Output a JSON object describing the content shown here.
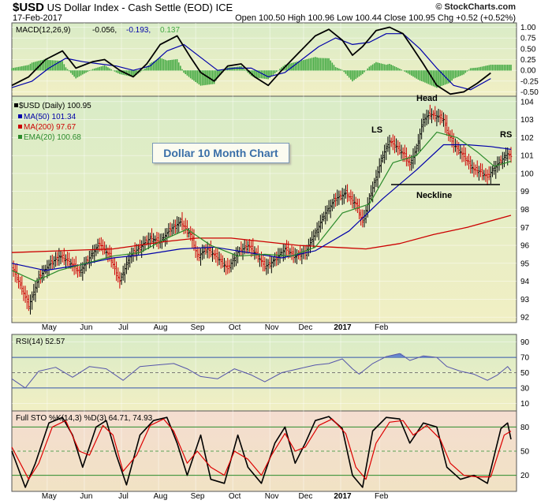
{
  "header": {
    "symbol": "$USD",
    "name": "US Dollar Index - Cash Settle (EOD)",
    "exchange": "ICE",
    "date": "17-Feb-2017",
    "brand": "© StockCharts.com",
    "quote": "Open 100.50   High 100.96   Low 100.44   Close 100.95   Chg +0.52 (+0.52%)"
  },
  "callout": "Dollar 10 Month Chart",
  "annotations": {
    "head": "Head",
    "ls": "LS",
    "rs": "RS",
    "neckline": "Neckline"
  },
  "colors": {
    "price_up": "#000000",
    "price_down": "#cc0000",
    "ma50": "#0000aa",
    "ma200": "#cc0000",
    "ema20": "#2a8a2a",
    "macd_hist": "#44aa44",
    "rsi": "#5555aa",
    "sto_k": "#000000",
    "sto_d": "#dd0000",
    "panel_bg": "#f1efc4"
  },
  "chart_data": [
    {
      "type": "line",
      "panel": "macd",
      "title": "MACD(12,26,9)",
      "legend_values": [
        "-0.056",
        "-0.193",
        "0.137"
      ],
      "y_ticks": [
        "1.00",
        "0.75",
        "0.50",
        "0.25",
        "0.00",
        "-0.25",
        "-0.50"
      ],
      "ylim": [
        -0.6,
        1.1
      ],
      "macd": [
        [
          0,
          -0.35
        ],
        [
          10,
          -0.15
        ],
        [
          20,
          0.25
        ],
        [
          30,
          0.45
        ],
        [
          38,
          0.05
        ],
        [
          48,
          0.2
        ],
        [
          55,
          0.25
        ],
        [
          64,
          0.0
        ],
        [
          72,
          -0.15
        ],
        [
          80,
          0.15
        ],
        [
          88,
          0.6
        ],
        [
          98,
          0.8
        ],
        [
          106,
          0.3
        ],
        [
          112,
          -0.05
        ],
        [
          120,
          -0.25
        ],
        [
          128,
          0.1
        ],
        [
          136,
          0.15
        ],
        [
          144,
          -0.15
        ],
        [
          152,
          -0.35
        ],
        [
          160,
          0.0
        ],
        [
          170,
          0.4
        ],
        [
          180,
          0.8
        ],
        [
          188,
          0.95
        ],
        [
          196,
          0.7
        ],
        [
          202,
          0.35
        ],
        [
          208,
          0.55
        ],
        [
          216,
          0.92
        ],
        [
          224,
          1.0
        ],
        [
          232,
          0.85
        ],
        [
          238,
          0.5
        ],
        [
          244,
          0.15
        ],
        [
          252,
          -0.35
        ],
        [
          260,
          -0.55
        ],
        [
          268,
          -0.5
        ],
        [
          276,
          -0.3
        ],
        [
          284,
          -0.06
        ]
      ],
      "signal": [
        [
          0,
          -0.4
        ],
        [
          12,
          -0.25
        ],
        [
          22,
          0.05
        ],
        [
          32,
          0.28
        ],
        [
          42,
          0.2
        ],
        [
          52,
          0.15
        ],
        [
          62,
          0.1
        ],
        [
          72,
          0.0
        ],
        [
          82,
          0.1
        ],
        [
          92,
          0.45
        ],
        [
          102,
          0.6
        ],
        [
          112,
          0.3
        ],
        [
          122,
          0.0
        ],
        [
          132,
          0.05
        ],
        [
          142,
          0.05
        ],
        [
          152,
          -0.15
        ],
        [
          162,
          -0.05
        ],
        [
          172,
          0.25
        ],
        [
          182,
          0.55
        ],
        [
          192,
          0.75
        ],
        [
          202,
          0.6
        ],
        [
          212,
          0.65
        ],
        [
          222,
          0.85
        ],
        [
          232,
          0.85
        ],
        [
          242,
          0.5
        ],
        [
          252,
          0.05
        ],
        [
          262,
          -0.35
        ],
        [
          272,
          -0.45
        ],
        [
          284,
          -0.19
        ]
      ]
    },
    {
      "type": "line",
      "panel": "price",
      "title": "$USD (Daily) 100.95",
      "legend": [
        {
          "name": "MA(50) 101.34"
        },
        {
          "name": "MA(200) 97.67"
        },
        {
          "name": "EMA(20) 100.68"
        }
      ],
      "y_ticks": [
        92,
        93,
        94,
        95,
        96,
        97,
        98,
        99,
        100,
        101,
        102,
        103,
        104
      ],
      "ylim": [
        91.7,
        104.3
      ],
      "x_labels": [
        "May",
        "Jun",
        "Jul",
        "Aug",
        "Sep",
        "Oct",
        "Nov",
        "Dec",
        "2017",
        "Feb"
      ],
      "close": [
        [
          0,
          94.8
        ],
        [
          6,
          93.6
        ],
        [
          10,
          92.6
        ],
        [
          16,
          94.2
        ],
        [
          22,
          94.9
        ],
        [
          28,
          95.4
        ],
        [
          34,
          95.1
        ],
        [
          40,
          94.5
        ],
        [
          46,
          95.3
        ],
        [
          52,
          96.1
        ],
        [
          58,
          95.4
        ],
        [
          64,
          94.0
        ],
        [
          70,
          95.4
        ],
        [
          76,
          95.9
        ],
        [
          82,
          96.4
        ],
        [
          88,
          96.2
        ],
        [
          94,
          96.9
        ],
        [
          100,
          97.3
        ],
        [
          106,
          96.6
        ],
        [
          110,
          95.4
        ],
        [
          116,
          95.8
        ],
        [
          122,
          95.3
        ],
        [
          128,
          94.7
        ],
        [
          134,
          95.6
        ],
        [
          140,
          96.0
        ],
        [
          146,
          95.4
        ],
        [
          150,
          94.8
        ],
        [
          156,
          95.2
        ],
        [
          162,
          95.8
        ],
        [
          168,
          95.4
        ],
        [
          174,
          95.6
        ],
        [
          180,
          96.7
        ],
        [
          186,
          97.8
        ],
        [
          192,
          98.6
        ],
        [
          198,
          98.9
        ],
        [
          204,
          98.3
        ],
        [
          208,
          97.3
        ],
        [
          212,
          98.6
        ],
        [
          216,
          99.8
        ],
        [
          220,
          101.0
        ],
        [
          224,
          101.8
        ],
        [
          228,
          101.5
        ],
        [
          232,
          101.1
        ],
        [
          236,
          100.5
        ],
        [
          240,
          101.4
        ],
        [
          244,
          103.0
        ],
        [
          248,
          103.3
        ],
        [
          252,
          103.2
        ],
        [
          256,
          103.0
        ],
        [
          258,
          102.4
        ],
        [
          262,
          101.6
        ],
        [
          266,
          101.2
        ],
        [
          270,
          100.7
        ],
        [
          274,
          100.2
        ],
        [
          278,
          100.1
        ],
        [
          282,
          99.8
        ],
        [
          286,
          100.3
        ],
        [
          290,
          100.7
        ],
        [
          294,
          101.1
        ],
        [
          296,
          100.95
        ]
      ],
      "ma50": [
        [
          0,
          95.0
        ],
        [
          20,
          94.6
        ],
        [
          40,
          94.9
        ],
        [
          60,
          95.3
        ],
        [
          80,
          95.5
        ],
        [
          100,
          95.8
        ],
        [
          120,
          95.9
        ],
        [
          140,
          95.6
        ],
        [
          160,
          95.3
        ],
        [
          180,
          95.7
        ],
        [
          200,
          96.8
        ],
        [
          220,
          98.6
        ],
        [
          240,
          100.2
        ],
        [
          256,
          101.6
        ],
        [
          270,
          101.6
        ],
        [
          284,
          101.5
        ],
        [
          296,
          101.34
        ]
      ],
      "ma200": [
        [
          0,
          95.6
        ],
        [
          30,
          95.7
        ],
        [
          60,
          95.8
        ],
        [
          90,
          96.2
        ],
        [
          110,
          96.4
        ],
        [
          130,
          96.4
        ],
        [
          150,
          96.2
        ],
        [
          170,
          96.0
        ],
        [
          190,
          95.9
        ],
        [
          210,
          95.8
        ],
        [
          230,
          96.1
        ],
        [
          250,
          96.6
        ],
        [
          270,
          97.0
        ],
        [
          296,
          97.67
        ]
      ],
      "ema20": [
        [
          0,
          94.6
        ],
        [
          14,
          94.0
        ],
        [
          28,
          94.6
        ],
        [
          44,
          95.0
        ],
        [
          60,
          95.4
        ],
        [
          76,
          95.6
        ],
        [
          92,
          96.4
        ],
        [
          104,
          96.9
        ],
        [
          118,
          96.0
        ],
        [
          134,
          95.4
        ],
        [
          150,
          95.5
        ],
        [
          166,
          95.4
        ],
        [
          180,
          95.9
        ],
        [
          196,
          97.8
        ],
        [
          212,
          98.3
        ],
        [
          226,
          100.6
        ],
        [
          240,
          101.0
        ],
        [
          252,
          102.3
        ],
        [
          264,
          102.0
        ],
        [
          276,
          101.2
        ],
        [
          286,
          100.4
        ],
        [
          296,
          100.68
        ]
      ]
    },
    {
      "type": "line",
      "panel": "rsi",
      "title": "RSI(14) 52.57",
      "y_ticks": [
        10,
        30,
        50,
        70,
        90
      ],
      "ylim": [
        0,
        100
      ],
      "values": [
        [
          0,
          42
        ],
        [
          8,
          30
        ],
        [
          16,
          52
        ],
        [
          26,
          57
        ],
        [
          36,
          44
        ],
        [
          46,
          58
        ],
        [
          56,
          55
        ],
        [
          66,
          40
        ],
        [
          76,
          58
        ],
        [
          86,
          60
        ],
        [
          96,
          62
        ],
        [
          104,
          55
        ],
        [
          112,
          45
        ],
        [
          122,
          42
        ],
        [
          132,
          55
        ],
        [
          142,
          47
        ],
        [
          150,
          38
        ],
        [
          160,
          50
        ],
        [
          170,
          55
        ],
        [
          180,
          60
        ],
        [
          188,
          62
        ],
        [
          196,
          68
        ],
        [
          202,
          55
        ],
        [
          206,
          48
        ],
        [
          214,
          62
        ],
        [
          222,
          71
        ],
        [
          230,
          75
        ],
        [
          236,
          66
        ],
        [
          244,
          72
        ],
        [
          252,
          70
        ],
        [
          258,
          58
        ],
        [
          266,
          52
        ],
        [
          274,
          48
        ],
        [
          282,
          40
        ],
        [
          288,
          47
        ],
        [
          294,
          58
        ],
        [
          296,
          52.57
        ]
      ]
    },
    {
      "type": "line",
      "panel": "full_sto",
      "title": "Full STO %K(14,3) %D(3) 64.71, 74.93",
      "y_ticks": [
        20,
        50,
        80
      ],
      "ylim": [
        0,
        100
      ],
      "k": [
        [
          0,
          50
        ],
        [
          8,
          5
        ],
        [
          14,
          35
        ],
        [
          22,
          85
        ],
        [
          30,
          92
        ],
        [
          36,
          70
        ],
        [
          42,
          30
        ],
        [
          50,
          80
        ],
        [
          56,
          88
        ],
        [
          62,
          45
        ],
        [
          68,
          8
        ],
        [
          76,
          70
        ],
        [
          84,
          88
        ],
        [
          92,
          92
        ],
        [
          98,
          60
        ],
        [
          104,
          20
        ],
        [
          112,
          70
        ],
        [
          118,
          15
        ],
        [
          126,
          10
        ],
        [
          134,
          70
        ],
        [
          140,
          30
        ],
        [
          148,
          10
        ],
        [
          156,
          60
        ],
        [
          162,
          80
        ],
        [
          168,
          35
        ],
        [
          174,
          60
        ],
        [
          180,
          88
        ],
        [
          188,
          93
        ],
        [
          196,
          78
        ],
        [
          202,
          20
        ],
        [
          208,
          5
        ],
        [
          214,
          75
        ],
        [
          222,
          92
        ],
        [
          230,
          90
        ],
        [
          236,
          60
        ],
        [
          244,
          85
        ],
        [
          252,
          80
        ],
        [
          258,
          30
        ],
        [
          266,
          15
        ],
        [
          274,
          20
        ],
        [
          282,
          10
        ],
        [
          290,
          78
        ],
        [
          294,
          85
        ],
        [
          296,
          64.71
        ]
      ],
      "d": [
        [
          0,
          55
        ],
        [
          10,
          15
        ],
        [
          16,
          35
        ],
        [
          24,
          80
        ],
        [
          32,
          88
        ],
        [
          40,
          50
        ],
        [
          46,
          45
        ],
        [
          54,
          82
        ],
        [
          60,
          70
        ],
        [
          66,
          25
        ],
        [
          74,
          45
        ],
        [
          82,
          82
        ],
        [
          90,
          90
        ],
        [
          96,
          75
        ],
        [
          104,
          35
        ],
        [
          110,
          50
        ],
        [
          118,
          30
        ],
        [
          126,
          20
        ],
        [
          132,
          50
        ],
        [
          140,
          40
        ],
        [
          148,
          20
        ],
        [
          154,
          45
        ],
        [
          162,
          72
        ],
        [
          168,
          50
        ],
        [
          174,
          55
        ],
        [
          182,
          82
        ],
        [
          190,
          90
        ],
        [
          198,
          72
        ],
        [
          204,
          30
        ],
        [
          210,
          15
        ],
        [
          216,
          60
        ],
        [
          224,
          86
        ],
        [
          232,
          88
        ],
        [
          238,
          70
        ],
        [
          246,
          82
        ],
        [
          254,
          65
        ],
        [
          260,
          35
        ],
        [
          268,
          20
        ],
        [
          276,
          18
        ],
        [
          284,
          18
        ],
        [
          292,
          70
        ],
        [
          296,
          74.93
        ]
      ]
    }
  ]
}
